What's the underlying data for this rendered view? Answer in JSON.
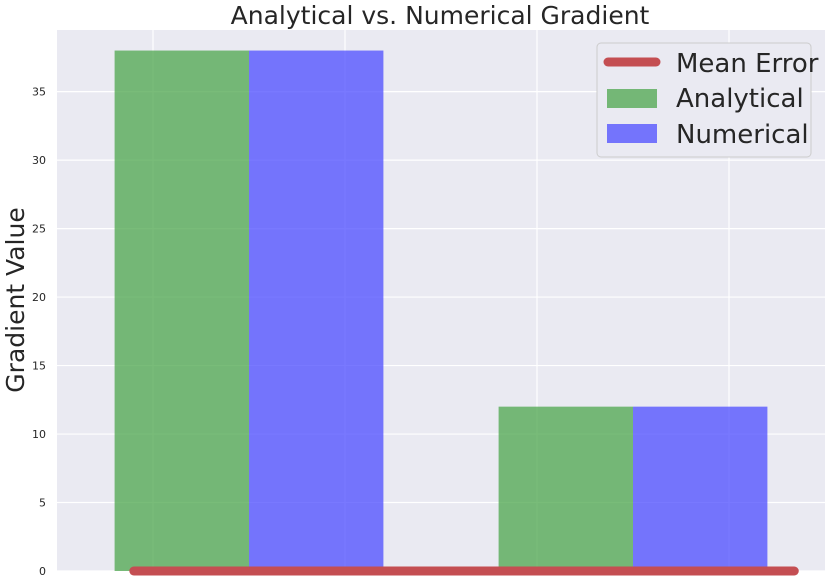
{
  "chart_data": {
    "type": "bar",
    "title": "Analytical vs. Numerical Gradient",
    "xlabel": "",
    "ylabel": "Gradient Value",
    "ylim": [
      0,
      39.5
    ],
    "yticks": [
      0,
      5,
      10,
      15,
      20,
      25,
      30,
      35
    ],
    "ytick_labels": [
      "0",
      "5",
      "10",
      "15",
      "20",
      "25",
      "30",
      "35"
    ],
    "categories": [
      "",
      ""
    ],
    "series": [
      {
        "name": "Analytical",
        "values": [
          38,
          12
        ],
        "color": "#4ca64c",
        "opacity": 0.75
      },
      {
        "name": "Numerical",
        "values": [
          38,
          12
        ],
        "color": "#4c4cff",
        "opacity": 0.75
      }
    ],
    "lines": [
      {
        "name": "Mean Error",
        "value": 0,
        "color": "#c44e52"
      }
    ],
    "grid": true,
    "legend": {
      "position": "top-right",
      "order": [
        "Mean Error",
        "Analytical",
        "Numerical"
      ]
    },
    "background": "#eaeaf2"
  }
}
